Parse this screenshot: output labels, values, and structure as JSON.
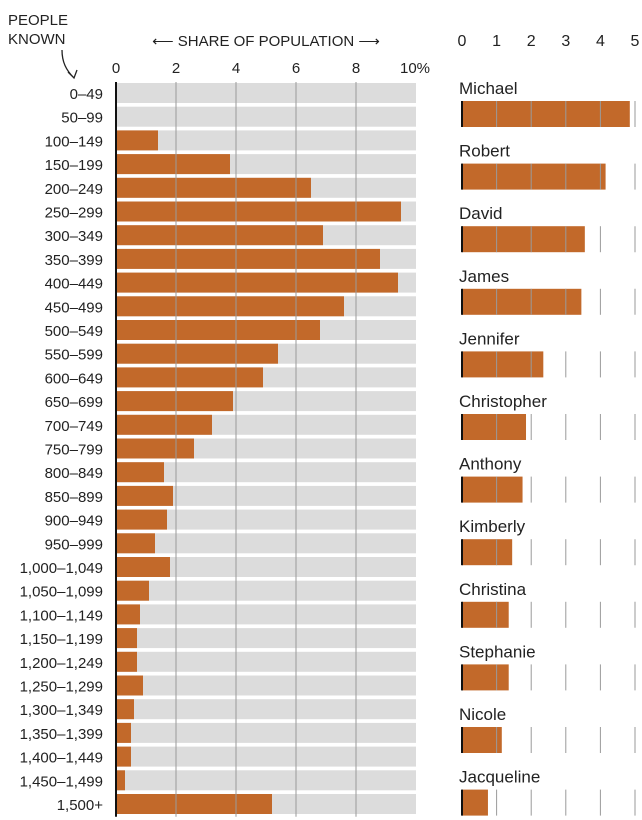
{
  "colors": {
    "bar": "#c2692a",
    "track": "#dcdcdc",
    "grid": "#9a9a9a",
    "text": "#222222"
  },
  "chart_data": [
    {
      "type": "bar",
      "orientation": "horizontal",
      "y_header": [
        "PEOPLE",
        "KNOWN"
      ],
      "x_header": "⟵ SHARE OF POPULATION ⟶",
      "xlim": [
        0,
        10
      ],
      "x_ticks": [
        "0",
        "2",
        "4",
        "6",
        "8",
        "10%"
      ],
      "grid": true,
      "categories": [
        "0–49",
        "50–99",
        "100–149",
        "150–199",
        "200–249",
        "250–299",
        "300–349",
        "350–399",
        "400–449",
        "450–499",
        "500–549",
        "550–599",
        "600–649",
        "650–699",
        "700–749",
        "750–799",
        "800–849",
        "850–899",
        "900–949",
        "950–999",
        "1,000–1,049",
        "1,050–1,099",
        "1,100–1,149",
        "1,150–1,199",
        "1,200–1,249",
        "1,250–1,299",
        "1,300–1,349",
        "1,350–1,399",
        "1,400–1,449",
        "1,450–1,499",
        "1,500+"
      ],
      "values": [
        0,
        0,
        1.4,
        3.8,
        6.5,
        9.5,
        6.9,
        8.8,
        9.4,
        7.6,
        6.8,
        5.4,
        4.9,
        3.9,
        3.2,
        2.6,
        1.6,
        1.9,
        1.7,
        1.3,
        1.8,
        1.1,
        0.8,
        0.7,
        0.7,
        0.9,
        0.6,
        0.5,
        0.5,
        0.3,
        5.2
      ]
    },
    {
      "type": "bar",
      "orientation": "horizontal",
      "xlim": [
        0,
        5
      ],
      "x_ticks": [
        "0",
        "1",
        "2",
        "3",
        "4",
        "5"
      ],
      "grid": true,
      "categories": [
        "Michael",
        "Robert",
        "David",
        "James",
        "Jennifer",
        "Christopher",
        "Anthony",
        "Kimberly",
        "Christina",
        "Stephanie",
        "Nicole",
        "Jacqueline"
      ],
      "values": [
        4.85,
        4.15,
        3.55,
        3.45,
        2.35,
        1.85,
        1.75,
        1.45,
        1.35,
        1.35,
        1.15,
        0.75
      ]
    }
  ]
}
